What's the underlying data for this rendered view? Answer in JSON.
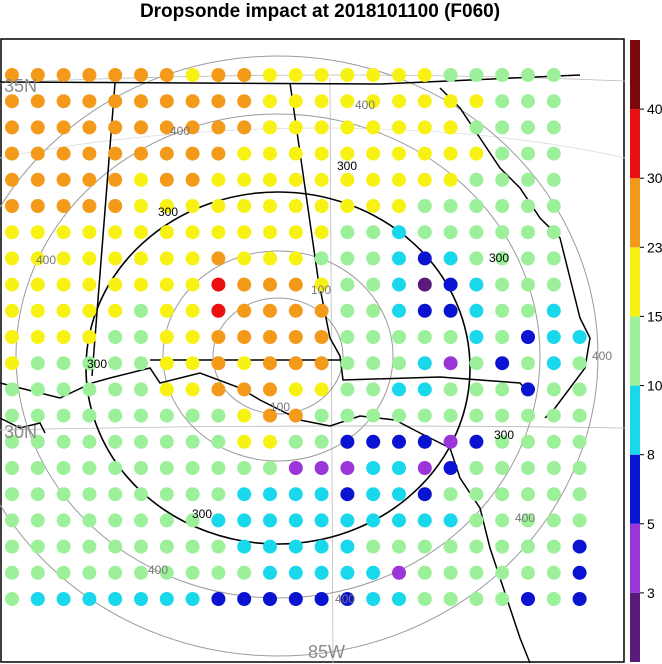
{
  "title": "Dropsonde impact at 2018101100 (F060)",
  "map": {
    "lat_labels": [
      "35N",
      "30N"
    ],
    "lon_labels": [
      "85W"
    ],
    "range_ring_labels": [
      "100",
      "300",
      "400"
    ],
    "major_ring_label": "300"
  },
  "colorbar": {
    "tick_labels": [
      "40",
      "30",
      "23",
      "15",
      "10",
      "8",
      "5",
      "3"
    ],
    "colors": [
      "#5a1a7a",
      "#9a36d8",
      "#0a14d0",
      "#1ad8ec",
      "#9cf09a",
      "#f8f214",
      "#f49a1a",
      "#e81010",
      "#7a0a0a"
    ]
  },
  "dot_colors": {
    "O": "#f49a1a",
    "Y": "#f8f214",
    "G": "#9cf09a",
    "C": "#1ad8ec",
    "B": "#0a14d0",
    "P": "#9a36d8",
    "D": "#5a1a7a",
    "R": "#e81010"
  },
  "dot_rows": [
    "OOOOOOOYOOYYYYYYYGGGGG",
    "OOOOOOOOOOYYYYYYYYYGGG",
    "OOOOOOOOOOYYYYYYYYGGGG",
    "OOOOOOOOOYYYYYYYYYYGGG",
    "OOOOOYOOYYYYYYYYYYGGGG",
    "OOOOOYYYYYYYYYYYGGGGGG",
    "YYYYYYYYYYYYYGGCGGGGGG",
    "YYYYYYYYOYYYGGGCBCGGGG",
    "YYYYYYYYROOOYGGCDBCGGG",
    "YYYYYGYYROOOOGGCBBCGGC",
    "YYYYGGYYOOOOOGGGGGCGBCC",
    "YGGGGGYYOYOOOGGGCPGBGCG",
    "GGGGGGYYOOOYYGGCCGGGBGG",
    "GGGGGGGGGYOOGGGGGGGGGGG",
    "GGGGGGGGGYYGGBBBBPBGGGG",
    "GGGGGGGGGGGPPPCCPBGGGGG",
    "GGGGGGGGGCCCCBCCBGGGGGG",
    "GGGGGGGGCCCCCCCCCCGGGGG",
    "GGGGGGGGGCCCCCGGGGGGGGB",
    "GGGGGGGGGGCCCCCPGGGGGGB",
    "GCCCCCCCBBBBBBCCGGGGBGB"
  ]
}
